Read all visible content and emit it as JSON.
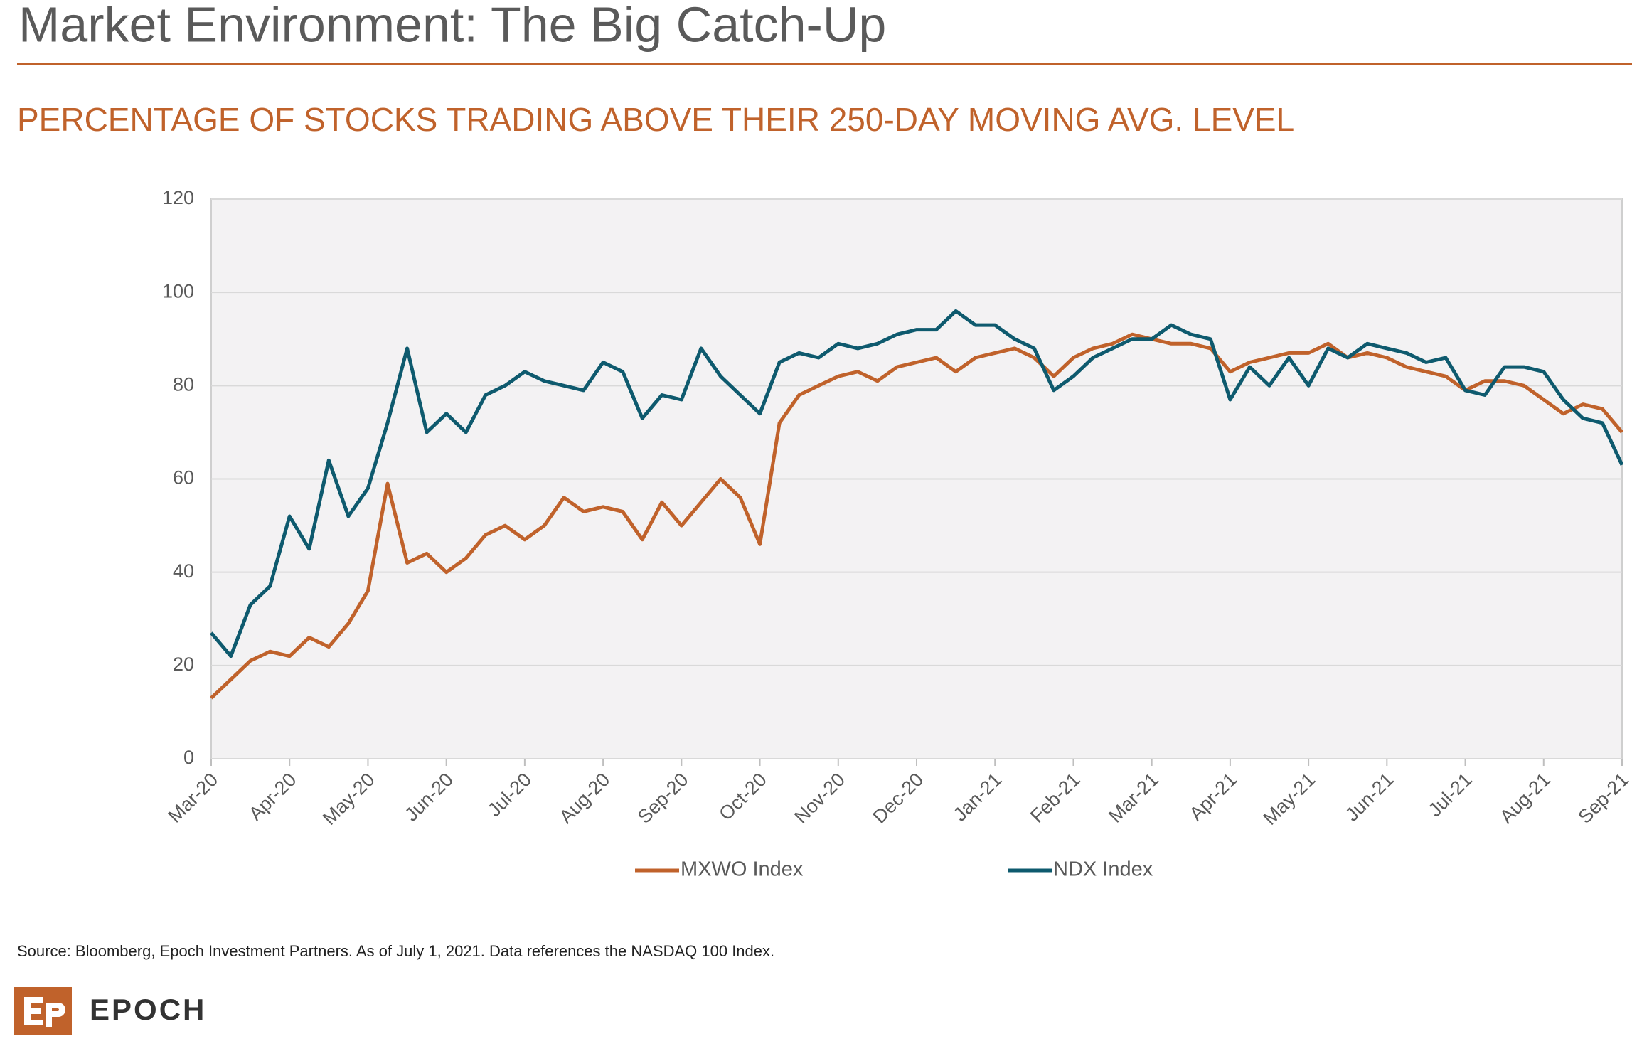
{
  "title": "Market Environment: The Big Catch-Up",
  "chart_data": {
    "type": "line",
    "title": "PERCENTAGE OF STOCKS TRADING ABOVE THEIR 250-DAY MOVING AVG. LEVEL",
    "categories": [
      "Mar-20",
      null,
      null,
      null,
      "Apr-20",
      null,
      null,
      null,
      "May-20",
      null,
      null,
      null,
      "Jun-20",
      null,
      null,
      null,
      "Jul-20",
      null,
      null,
      null,
      "Aug-20",
      null,
      null,
      null,
      "Sep-20",
      null,
      null,
      null,
      "Oct-20",
      null,
      null,
      null,
      "Nov-20",
      null,
      null,
      null,
      "Dec-20",
      null,
      null,
      null,
      "Jan-21",
      null,
      null,
      null,
      "Feb-21",
      null,
      null,
      null,
      "Mar-21",
      null,
      null,
      null,
      "Apr-21",
      null,
      null,
      null,
      "May-21",
      null,
      null,
      null,
      "Jun-21",
      null,
      null,
      null,
      "Jul-21",
      null,
      null,
      null,
      "Aug-21",
      null,
      null,
      null,
      "Sep-21"
    ],
    "series": [
      {
        "name": "MXWO Index",
        "color": "#c0622b",
        "values": [
          13,
          17,
          21,
          23,
          22,
          26,
          24,
          29,
          36,
          59,
          42,
          44,
          40,
          43,
          48,
          50,
          47,
          50,
          56,
          53,
          54,
          53,
          47,
          55,
          50,
          55,
          60,
          56,
          46,
          72,
          78,
          80,
          82,
          83,
          81,
          84,
          85,
          86,
          83,
          86,
          87,
          88,
          86,
          82,
          86,
          88,
          89,
          91,
          90,
          89,
          89,
          88,
          83,
          85,
          86,
          87,
          87,
          89,
          86,
          87,
          86,
          84,
          83,
          82,
          79,
          81,
          81,
          80,
          77,
          74,
          76,
          75,
          70
        ]
      },
      {
        "name": "NDX Index",
        "color": "#0e5a6e",
        "values": [
          27,
          22,
          33,
          37,
          52,
          45,
          64,
          52,
          58,
          72,
          88,
          70,
          74,
          70,
          78,
          80,
          83,
          81,
          80,
          79,
          85,
          83,
          73,
          78,
          77,
          88,
          82,
          78,
          74,
          85,
          87,
          86,
          89,
          88,
          89,
          91,
          92,
          92,
          96,
          93,
          93,
          90,
          88,
          79,
          82,
          86,
          88,
          90,
          90,
          93,
          91,
          90,
          77,
          84,
          80,
          86,
          80,
          88,
          86,
          89,
          88,
          87,
          85,
          86,
          79,
          78,
          84,
          84,
          83,
          77,
          73,
          72,
          63
        ]
      }
    ],
    "ylim": [
      0,
      120
    ],
    "yticks": [
      0,
      20,
      40,
      60,
      80,
      100,
      120
    ],
    "grid": true,
    "legend": "bottom"
  },
  "footer": {
    "source": "Source: Bloomberg, Epoch Investment Partners. As of July 1, 2021. Data references the NASDAQ 100 Index.",
    "brand": "EPOCH"
  }
}
